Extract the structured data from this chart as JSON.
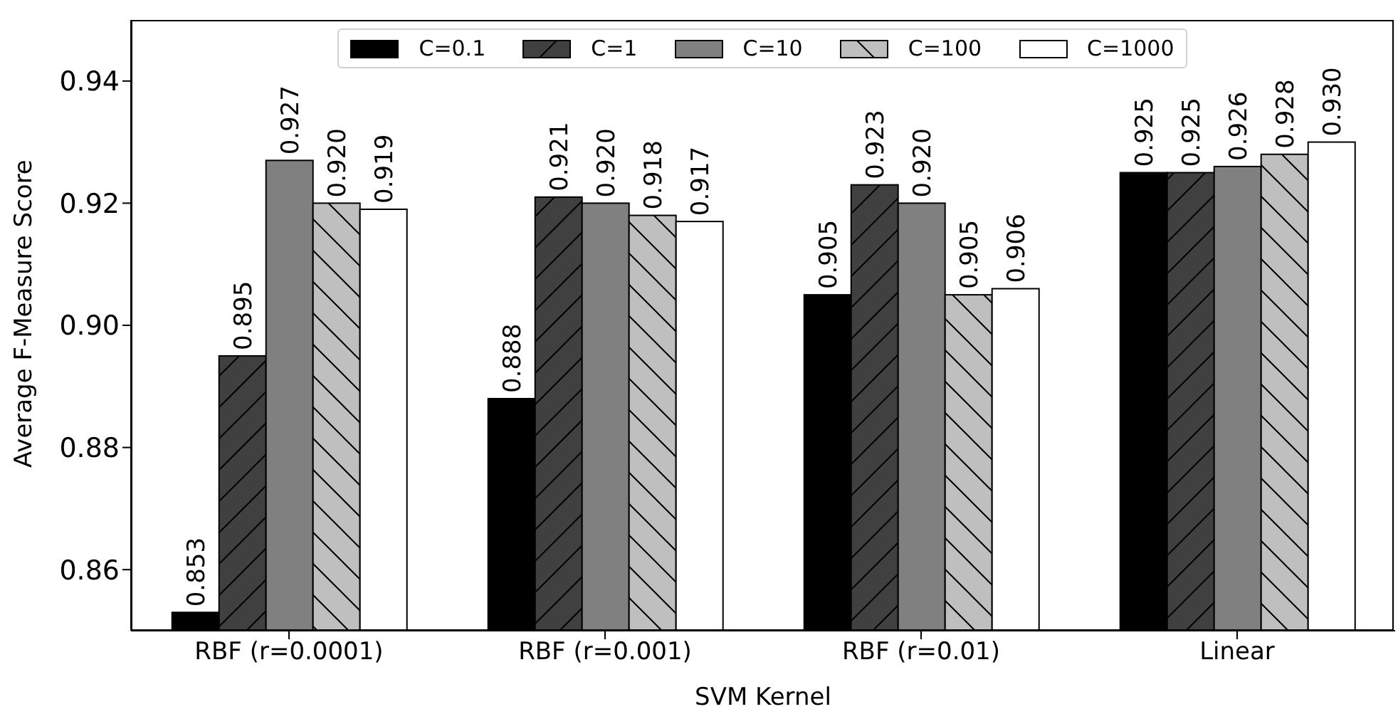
{
  "chart_data": {
    "type": "bar",
    "xlabel": "SVM Kernel",
    "ylabel": "Average F-Measure Score",
    "categories": [
      "RBF (r=0.0001)",
      "RBF (r=0.001)",
      "RBF (r=0.01)",
      "Linear"
    ],
    "series": [
      {
        "name": "C=0.1",
        "color": "#000000",
        "values": [
          0.853,
          0.888,
          0.905,
          0.925
        ],
        "value_labels": [
          "0.853",
          "0.888",
          "0.905",
          "0.925"
        ]
      },
      {
        "name": "C=1",
        "color": "#404040",
        "values": [
          0.895,
          0.921,
          0.923,
          0.925
        ],
        "value_labels": [
          "0.895",
          "0.921",
          "0.923",
          "0.925"
        ]
      },
      {
        "name": "C=10",
        "color": "#808080",
        "values": [
          0.927,
          0.92,
          0.92,
          0.926
        ],
        "value_labels": [
          "0.927",
          "0.920",
          "0.920",
          "0.926"
        ]
      },
      {
        "name": "C=100",
        "color": "#bfbfbf",
        "values": [
          0.92,
          0.918,
          0.905,
          0.928
        ],
        "value_labels": [
          "0.920",
          "0.918",
          "0.905",
          "0.928"
        ]
      },
      {
        "name": "C=1000",
        "color": "#ffffff",
        "values": [
          0.919,
          0.917,
          0.906,
          0.93
        ],
        "value_labels": [
          "0.919",
          "0.917",
          "0.906",
          "0.930"
        ]
      }
    ],
    "ylim": [
      0.85,
      0.95
    ],
    "yticks": [
      0.86,
      0.88,
      {
        "value": 0.9,
        "label": "0.90"
      },
      0.92,
      0.94
    ],
    "legend": "top",
    "grid": false
  }
}
